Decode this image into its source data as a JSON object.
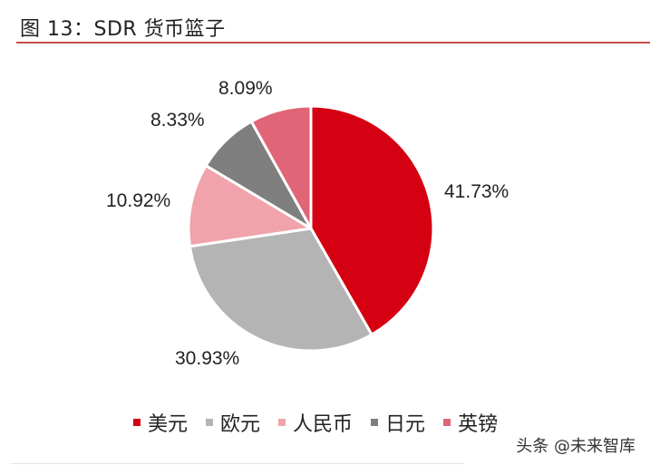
{
  "header": {
    "title": "图 13：SDR 货币篮子"
  },
  "watermark": "头条 @未来智库",
  "chart_data": {
    "type": "pie",
    "title": "图 13：SDR 货币篮子",
    "categories": [
      "美元",
      "欧元",
      "人民币",
      "日元",
      "英镑"
    ],
    "values": [
      41.73,
      30.93,
      10.92,
      8.33,
      8.09
    ],
    "labels": [
      "41.73%",
      "30.93%",
      "10.92%",
      "8.33%",
      "8.09%"
    ],
    "colors": [
      "#d50011",
      "#b4b4b4",
      "#f0a3aa",
      "#7f7f7f",
      "#e06577"
    ],
    "start_angle": "12 o'clock, clockwise",
    "legend_position": "bottom"
  },
  "legend": [
    {
      "label": "美元",
      "color": "#d50011"
    },
    {
      "label": "欧元",
      "color": "#b4b4b4"
    },
    {
      "label": "人民币",
      "color": "#f0a3aa"
    },
    {
      "label": "日元",
      "color": "#7f7f7f"
    },
    {
      "label": "英镑",
      "color": "#e06577"
    }
  ]
}
